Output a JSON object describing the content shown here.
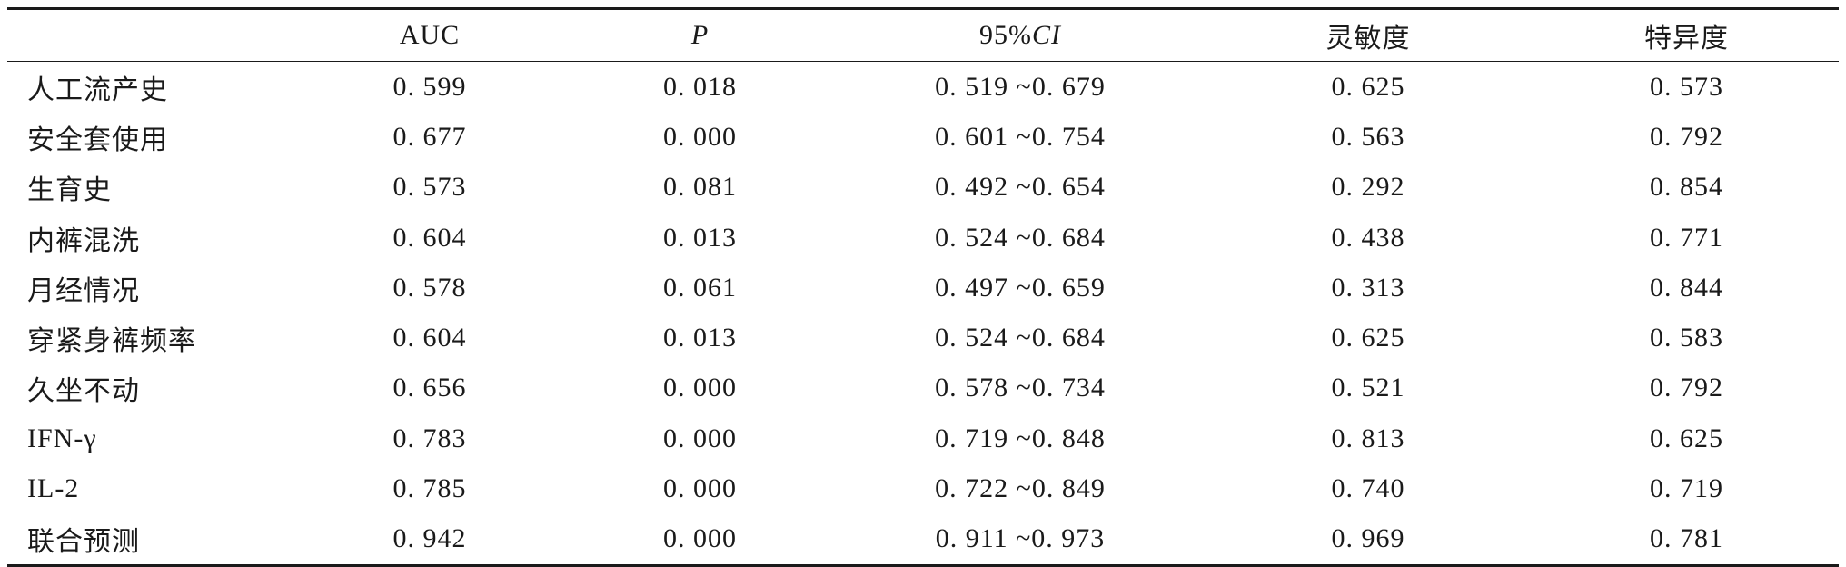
{
  "table": {
    "headers": {
      "label": "",
      "auc": "AUC",
      "p": "P",
      "ci_num": "95%",
      "ci_italic": "CI",
      "sensitivity": "灵敏度",
      "specificity": "特异度"
    },
    "rows": [
      {
        "label": "人工流产史",
        "auc": "0. 599",
        "p": "0. 018",
        "ci": "0. 519 ~0. 679",
        "sensitivity": "0. 625",
        "specificity": "0. 573"
      },
      {
        "label": "安全套使用",
        "auc": "0. 677",
        "p": "0. 000",
        "ci": "0. 601 ~0. 754",
        "sensitivity": "0. 563",
        "specificity": "0. 792"
      },
      {
        "label": "生育史",
        "auc": "0. 573",
        "p": "0. 081",
        "ci": "0. 492 ~0. 654",
        "sensitivity": "0. 292",
        "specificity": "0. 854"
      },
      {
        "label": "内裤混洗",
        "auc": "0. 604",
        "p": "0. 013",
        "ci": "0. 524 ~0. 684",
        "sensitivity": "0. 438",
        "specificity": "0. 771"
      },
      {
        "label": "月经情况",
        "auc": "0. 578",
        "p": "0. 061",
        "ci": "0. 497 ~0. 659",
        "sensitivity": "0. 313",
        "specificity": "0. 844"
      },
      {
        "label": "穿紧身裤频率",
        "auc": "0. 604",
        "p": "0. 013",
        "ci": "0. 524 ~0. 684",
        "sensitivity": "0. 625",
        "specificity": "0. 583"
      },
      {
        "label": "久坐不动",
        "auc": "0. 656",
        "p": "0. 000",
        "ci": "0. 578 ~0. 734",
        "sensitivity": "0. 521",
        "specificity": "0. 792"
      },
      {
        "label": "IFN-γ",
        "auc": "0. 783",
        "p": "0. 000",
        "ci": "0. 719 ~0. 848",
        "sensitivity": "0. 813",
        "specificity": "0. 625"
      },
      {
        "label": "IL-2",
        "auc": "0. 785",
        "p": "0. 000",
        "ci": "0. 722 ~0. 849",
        "sensitivity": "0. 740",
        "specificity": "0. 719"
      },
      {
        "label": "联合预测",
        "auc": "0. 942",
        "p": "0. 000",
        "ci": "0. 911 ~0. 973",
        "sensitivity": "0. 969",
        "specificity": "0. 781"
      }
    ]
  }
}
